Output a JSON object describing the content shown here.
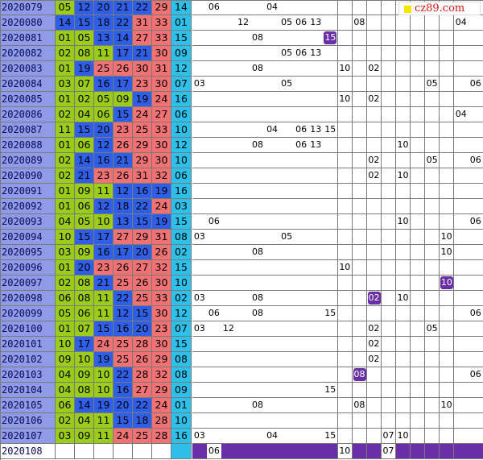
{
  "logo": {
    "text": "cz89.com"
  },
  "colors": {
    "period": "#8f9ae8",
    "green": "#9ccc1a",
    "blue": "#2f5fe6",
    "red": "#f07272",
    "cyan": "#2fc0ea",
    "violet": "#6a2fa6"
  },
  "rows": [
    {
      "period": "2020079",
      "reds": [
        "05",
        "12",
        "20",
        "21",
        "22",
        "29"
      ],
      "blue": "14",
      "trend": [
        {
          "col": 1,
          "v": "06"
        },
        {
          "col": 5,
          "v": "04"
        }
      ]
    },
    {
      "period": "2020080",
      "reds": [
        "14",
        "15",
        "18",
        "22",
        "31",
        "33"
      ],
      "blue": "01",
      "trend": [
        {
          "col": 3,
          "v": "12"
        },
        {
          "col": 6,
          "v": "05"
        },
        {
          "col": 7,
          "v": "06"
        },
        {
          "col": 8,
          "v": "13"
        },
        {
          "col": 11,
          "v": "08"
        },
        {
          "col": 18,
          "v": "04"
        }
      ]
    },
    {
      "period": "2020081",
      "reds": [
        "01",
        "05",
        "13",
        "14",
        "27",
        "33"
      ],
      "blue": "15",
      "trend": [
        {
          "col": 4,
          "v": "08"
        },
        {
          "col": 9,
          "v": "15",
          "hl": true
        }
      ]
    },
    {
      "period": "2020082",
      "reds": [
        "02",
        "08",
        "11",
        "17",
        "21",
        "30"
      ],
      "blue": "09",
      "trend": [
        {
          "col": 6,
          "v": "05"
        },
        {
          "col": 7,
          "v": "06"
        },
        {
          "col": 8,
          "v": "13"
        }
      ]
    },
    {
      "period": "2020083",
      "reds": [
        "01",
        "19",
        "25",
        "26",
        "30",
        "31"
      ],
      "blue": "12",
      "trend": [
        {
          "col": 4,
          "v": "08"
        },
        {
          "col": 10,
          "v": "10"
        },
        {
          "col": 12,
          "v": "02"
        }
      ]
    },
    {
      "period": "2020084",
      "reds": [
        "03",
        "07",
        "16",
        "17",
        "23",
        "30"
      ],
      "blue": "07",
      "trend": [
        {
          "col": 0,
          "v": "03"
        },
        {
          "col": 6,
          "v": "05"
        },
        {
          "col": 16,
          "v": "05"
        },
        {
          "col": 19,
          "v": "06"
        }
      ]
    },
    {
      "period": "2020085",
      "reds": [
        "01",
        "02",
        "05",
        "09",
        "19",
        "24"
      ],
      "blue": "16",
      "trend": [
        {
          "col": 10,
          "v": "10"
        },
        {
          "col": 12,
          "v": "02"
        }
      ]
    },
    {
      "period": "2020086",
      "reds": [
        "02",
        "04",
        "06",
        "15",
        "24",
        "27"
      ],
      "blue": "06",
      "trend": [
        {
          "col": 18,
          "v": "04"
        }
      ]
    },
    {
      "period": "2020087",
      "reds": [
        "11",
        "15",
        "20",
        "23",
        "25",
        "33"
      ],
      "blue": "10",
      "trend": [
        {
          "col": 5,
          "v": "04"
        },
        {
          "col": 7,
          "v": "06"
        },
        {
          "col": 8,
          "v": "13"
        },
        {
          "col": 9,
          "v": "15"
        }
      ]
    },
    {
      "period": "2020088",
      "reds": [
        "01",
        "06",
        "12",
        "26",
        "29",
        "30"
      ],
      "blue": "12",
      "trend": [
        {
          "col": 4,
          "v": "08"
        },
        {
          "col": 7,
          "v": "06"
        },
        {
          "col": 8,
          "v": "13"
        },
        {
          "col": 14,
          "v": "10"
        }
      ]
    },
    {
      "period": "2020089",
      "reds": [
        "02",
        "14",
        "16",
        "21",
        "29",
        "30"
      ],
      "blue": "10",
      "trend": [
        {
          "col": 12,
          "v": "02"
        },
        {
          "col": 16,
          "v": "05"
        },
        {
          "col": 19,
          "v": "06"
        }
      ]
    },
    {
      "period": "2020090",
      "reds": [
        "02",
        "21",
        "23",
        "26",
        "31",
        "32"
      ],
      "blue": "06",
      "trend": [
        {
          "col": 12,
          "v": "02"
        },
        {
          "col": 14,
          "v": "10"
        }
      ]
    },
    {
      "period": "2020091",
      "reds": [
        "01",
        "09",
        "11",
        "12",
        "16",
        "19"
      ],
      "blue": "16",
      "trend": []
    },
    {
      "period": "2020092",
      "reds": [
        "01",
        "06",
        "12",
        "18",
        "22",
        "24"
      ],
      "blue": "03",
      "trend": []
    },
    {
      "period": "2020093",
      "reds": [
        "04",
        "05",
        "10",
        "13",
        "15",
        "19"
      ],
      "blue": "15",
      "trend": [
        {
          "col": 1,
          "v": "06"
        },
        {
          "col": 14,
          "v": "10"
        },
        {
          "col": 19,
          "v": "06"
        }
      ]
    },
    {
      "period": "2020094",
      "reds": [
        "10",
        "15",
        "17",
        "27",
        "29",
        "31"
      ],
      "blue": "08",
      "trend": [
        {
          "col": 0,
          "v": "03"
        },
        {
          "col": 6,
          "v": "05"
        },
        {
          "col": 17,
          "v": "10"
        }
      ]
    },
    {
      "period": "2020095",
      "reds": [
        "03",
        "09",
        "16",
        "17",
        "20",
        "26"
      ],
      "blue": "02",
      "trend": [
        {
          "col": 4,
          "v": "08"
        },
        {
          "col": 17,
          "v": "10"
        }
      ]
    },
    {
      "period": "2020096",
      "reds": [
        "01",
        "20",
        "23",
        "26",
        "27",
        "32"
      ],
      "blue": "15",
      "trend": [
        {
          "col": 10,
          "v": "10"
        }
      ]
    },
    {
      "period": "2020097",
      "reds": [
        "02",
        "08",
        "21",
        "25",
        "26",
        "30"
      ],
      "blue": "10",
      "trend": [
        {
          "col": 17,
          "v": "10",
          "hl": true
        }
      ]
    },
    {
      "period": "2020098",
      "reds": [
        "06",
        "08",
        "11",
        "22",
        "25",
        "33"
      ],
      "blue": "02",
      "trend": [
        {
          "col": 0,
          "v": "03"
        },
        {
          "col": 4,
          "v": "08"
        },
        {
          "col": 12,
          "v": "02",
          "hl": true
        },
        {
          "col": 14,
          "v": "10"
        }
      ]
    },
    {
      "period": "2020099",
      "reds": [
        "05",
        "06",
        "11",
        "12",
        "15",
        "30"
      ],
      "blue": "12",
      "trend": [
        {
          "col": 1,
          "v": "06"
        },
        {
          "col": 4,
          "v": "08"
        },
        {
          "col": 9,
          "v": "15"
        },
        {
          "col": 19,
          "v": "06"
        }
      ]
    },
    {
      "period": "2020100",
      "reds": [
        "01",
        "07",
        "15",
        "16",
        "20",
        "23"
      ],
      "blue": "07",
      "trend": [
        {
          "col": 0,
          "v": "03"
        },
        {
          "col": 2,
          "v": "12"
        },
        {
          "col": 12,
          "v": "02"
        },
        {
          "col": 16,
          "v": "05"
        }
      ]
    },
    {
      "period": "2020101",
      "reds": [
        "10",
        "17",
        "24",
        "25",
        "28",
        "30"
      ],
      "blue": "15",
      "trend": [
        {
          "col": 12,
          "v": "02"
        }
      ]
    },
    {
      "period": "2020102",
      "reds": [
        "09",
        "10",
        "19",
        "25",
        "26",
        "29"
      ],
      "blue": "08",
      "trend": [
        {
          "col": 12,
          "v": "02"
        }
      ]
    },
    {
      "period": "2020103",
      "reds": [
        "04",
        "09",
        "10",
        "22",
        "28",
        "32"
      ],
      "blue": "08",
      "trend": [
        {
          "col": 11,
          "v": "08",
          "hl": true
        },
        {
          "col": 19,
          "v": "06"
        }
      ]
    },
    {
      "period": "2020104",
      "reds": [
        "04",
        "08",
        "10",
        "16",
        "27",
        "29"
      ],
      "blue": "09",
      "trend": [
        {
          "col": 9,
          "v": "15"
        }
      ]
    },
    {
      "period": "2020105",
      "reds": [
        "06",
        "14",
        "19",
        "20",
        "22",
        "24"
      ],
      "blue": "01",
      "trend": [
        {
          "col": 4,
          "v": "08"
        },
        {
          "col": 11,
          "v": "08"
        },
        {
          "col": 17,
          "v": "10"
        }
      ]
    },
    {
      "period": "2020106",
      "reds": [
        "02",
        "04",
        "11",
        "15",
        "18",
        "28"
      ],
      "blue": "10",
      "trend": []
    },
    {
      "period": "2020107",
      "reds": [
        "03",
        "09",
        "11",
        "24",
        "25",
        "28"
      ],
      "blue": "16",
      "trend": [
        {
          "col": 0,
          "v": "03"
        },
        {
          "col": 5,
          "v": "04"
        },
        {
          "col": 9,
          "v": "15"
        },
        {
          "col": 13,
          "v": "07"
        },
        {
          "col": 14,
          "v": "10"
        }
      ]
    },
    {
      "period": "2020108",
      "reds": [
        "",
        "",
        "",
        "",
        "",
        ""
      ],
      "blue": "",
      "last": true,
      "trend": [
        {
          "col": 1,
          "v": "06"
        },
        {
          "col": 10,
          "v": "10"
        },
        {
          "col": 13,
          "v": "07"
        }
      ]
    }
  ]
}
